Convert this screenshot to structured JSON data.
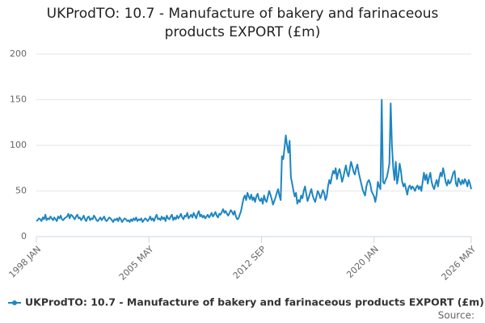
{
  "chart_data": {
    "type": "line",
    "title": "UKProdTO: 10.7 - Manufacture of bakery and farinaceous products EXPORT (£m)",
    "source": "Source:",
    "categories": [
      "1998 JAN",
      null,
      null,
      null,
      null,
      null,
      null,
      null,
      null,
      null,
      null,
      null,
      null,
      null,
      null,
      null,
      null,
      null,
      null,
      null,
      null,
      null,
      null,
      null,
      null,
      null,
      null,
      null,
      null,
      null,
      null,
      null,
      null,
      null,
      null,
      null,
      null,
      null,
      null,
      null,
      null,
      null,
      null,
      null,
      null,
      null,
      null,
      null,
      null,
      null,
      null,
      null,
      null,
      null,
      null,
      null,
      null,
      null,
      null,
      null,
      null,
      null,
      null,
      null,
      null,
      null,
      null,
      null,
      null,
      null,
      null,
      null,
      null,
      null,
      null,
      null,
      null,
      null,
      null,
      null,
      null,
      null,
      null,
      null,
      null,
      null,
      null,
      null,
      "2005 MAY",
      null,
      null,
      null,
      null,
      null,
      null,
      null,
      null,
      null,
      null,
      null,
      null,
      null,
      null,
      null,
      null,
      null,
      null,
      null,
      null,
      null,
      null,
      null,
      null,
      null,
      null,
      null,
      null,
      null,
      null,
      null,
      null,
      null,
      null,
      null,
      null,
      null,
      null,
      null,
      null,
      null,
      null,
      null,
      null,
      null,
      null,
      null,
      null,
      null,
      null,
      null,
      null,
      null,
      null,
      null,
      null,
      null,
      null,
      null,
      null,
      null,
      null,
      null,
      null,
      null,
      null,
      null,
      null,
      null,
      null,
      null,
      null,
      null,
      null,
      null,
      null,
      null,
      null,
      null,
      null,
      null,
      null,
      null,
      null,
      null,
      null,
      null,
      "2012 SEP",
      null,
      null,
      null,
      null,
      null,
      null,
      null,
      null,
      null,
      null,
      null,
      null,
      null,
      null,
      null,
      null,
      null,
      null,
      null,
      null,
      null,
      null,
      null,
      null,
      null,
      null,
      null,
      null,
      null,
      null,
      null,
      null,
      null,
      null,
      null,
      null,
      null,
      null,
      null,
      null,
      null,
      null,
      null,
      null,
      null,
      null,
      null,
      null,
      null,
      null,
      null,
      null,
      null,
      null,
      null,
      null,
      null,
      null,
      null,
      null,
      null,
      null,
      null,
      null,
      null,
      null,
      null,
      null,
      null,
      null,
      null,
      null,
      null,
      null,
      null,
      null,
      null,
      null,
      null,
      null,
      null,
      null,
      null,
      null,
      null,
      null,
      null,
      "2020 JAN",
      null,
      null,
      null,
      null,
      null,
      null,
      null,
      null,
      null,
      null,
      null,
      null,
      null,
      null,
      null,
      null,
      null,
      null,
      null,
      null,
      null,
      null,
      null,
      null,
      null,
      null,
      null,
      null,
      null,
      null,
      null,
      null,
      null,
      null,
      null,
      null,
      null,
      null,
      null,
      null,
      null,
      null,
      null,
      null,
      null,
      null,
      null,
      null,
      null,
      null,
      null,
      null,
      null,
      null,
      null,
      null,
      null,
      null,
      null,
      null,
      null,
      null,
      null,
      null,
      null,
      null,
      null,
      null,
      null,
      null,
      null,
      null,
      null,
      null,
      null,
      "2026 MAY"
    ],
    "series": [
      {
        "name": "UKProdTO: 10.7 - Manufacture of bakery and farinaceous products EXPORT (£m)",
        "color": "#1f86c1",
        "values": [
          17,
          18,
          20,
          19,
          17,
          21,
          19,
          24,
          18,
          20,
          19,
          22,
          20,
          18,
          21,
          19,
          17,
          22,
          20,
          23,
          19,
          18,
          20,
          21,
          22,
          25,
          20,
          24,
          23,
          21,
          19,
          22,
          24,
          20,
          21,
          18,
          20,
          23,
          19,
          17,
          21,
          22,
          18,
          20,
          19,
          23,
          21,
          18,
          17,
          19,
          21,
          18,
          20,
          22,
          18,
          17,
          19,
          21,
          20,
          18,
          16,
          19,
          18,
          20,
          17,
          21,
          19,
          16,
          18,
          20,
          19,
          17,
          18,
          16,
          19,
          17,
          20,
          18,
          21,
          17,
          19,
          18,
          20,
          16,
          18,
          20,
          19,
          17,
          19,
          22,
          18,
          20,
          17,
          21,
          24,
          19,
          20,
          18,
          22,
          19,
          21,
          17,
          23,
          20,
          19,
          22,
          24,
          18,
          21,
          19,
          23,
          20,
          22,
          25,
          21,
          19,
          23,
          22,
          26,
          20,
          22,
          24,
          21,
          26,
          23,
          20,
          25,
          28,
          22,
          24,
          21,
          23,
          20,
          22,
          24,
          21,
          23,
          26,
          22,
          24,
          27,
          23,
          21,
          25,
          24,
          27,
          30,
          26,
          28,
          25,
          23,
          26,
          29,
          27,
          24,
          28,
          22,
          19,
          20,
          24,
          28,
          35,
          42,
          45,
          40,
          48,
          44,
          41,
          46,
          40,
          43,
          38,
          44,
          47,
          41,
          39,
          42,
          36,
          45,
          40,
          38,
          44,
          50,
          46,
          41,
          35,
          39,
          43,
          48,
          52,
          45,
          40,
          88,
          85,
          97,
          111,
          100,
          92,
          105,
          65,
          58,
          50,
          44,
          48,
          36,
          40,
          38,
          45,
          42,
          50,
          55,
          47,
          39,
          43,
          48,
          52,
          45,
          41,
          38,
          44,
          50,
          47,
          42,
          46,
          51,
          48,
          40,
          44,
          55,
          62,
          58,
          66,
          72,
          69,
          75,
          63,
          70,
          74,
          68,
          60,
          65,
          72,
          78,
          70,
          66,
          74,
          82,
          77,
          71,
          68,
          75,
          79,
          70,
          64,
          58,
          52,
          48,
          45,
          55,
          60,
          62,
          58,
          50,
          47,
          44,
          38,
          46,
          60,
          55,
          52,
          150,
          60,
          58,
          62,
          65,
          72,
          80,
          146,
          100,
          75,
          62,
          82,
          58,
          66,
          80,
          72,
          60,
          55,
          58,
          52,
          46,
          54,
          56,
          52,
          55,
          53,
          50,
          54,
          56,
          52,
          55,
          50,
          60,
          70,
          62,
          68,
          58,
          65,
          70,
          60,
          55,
          52,
          58,
          62,
          55,
          64,
          70,
          66,
          75,
          68,
          60,
          56,
          62,
          58,
          60,
          65,
          70,
          72,
          58,
          55,
          64,
          60,
          57,
          62,
          58,
          63,
          60,
          55,
          62,
          58,
          52
        ]
      }
    ],
    "ylim": [
      0,
      200
    ],
    "yticks": [
      0,
      50,
      100,
      150,
      200
    ],
    "grid": true
  }
}
